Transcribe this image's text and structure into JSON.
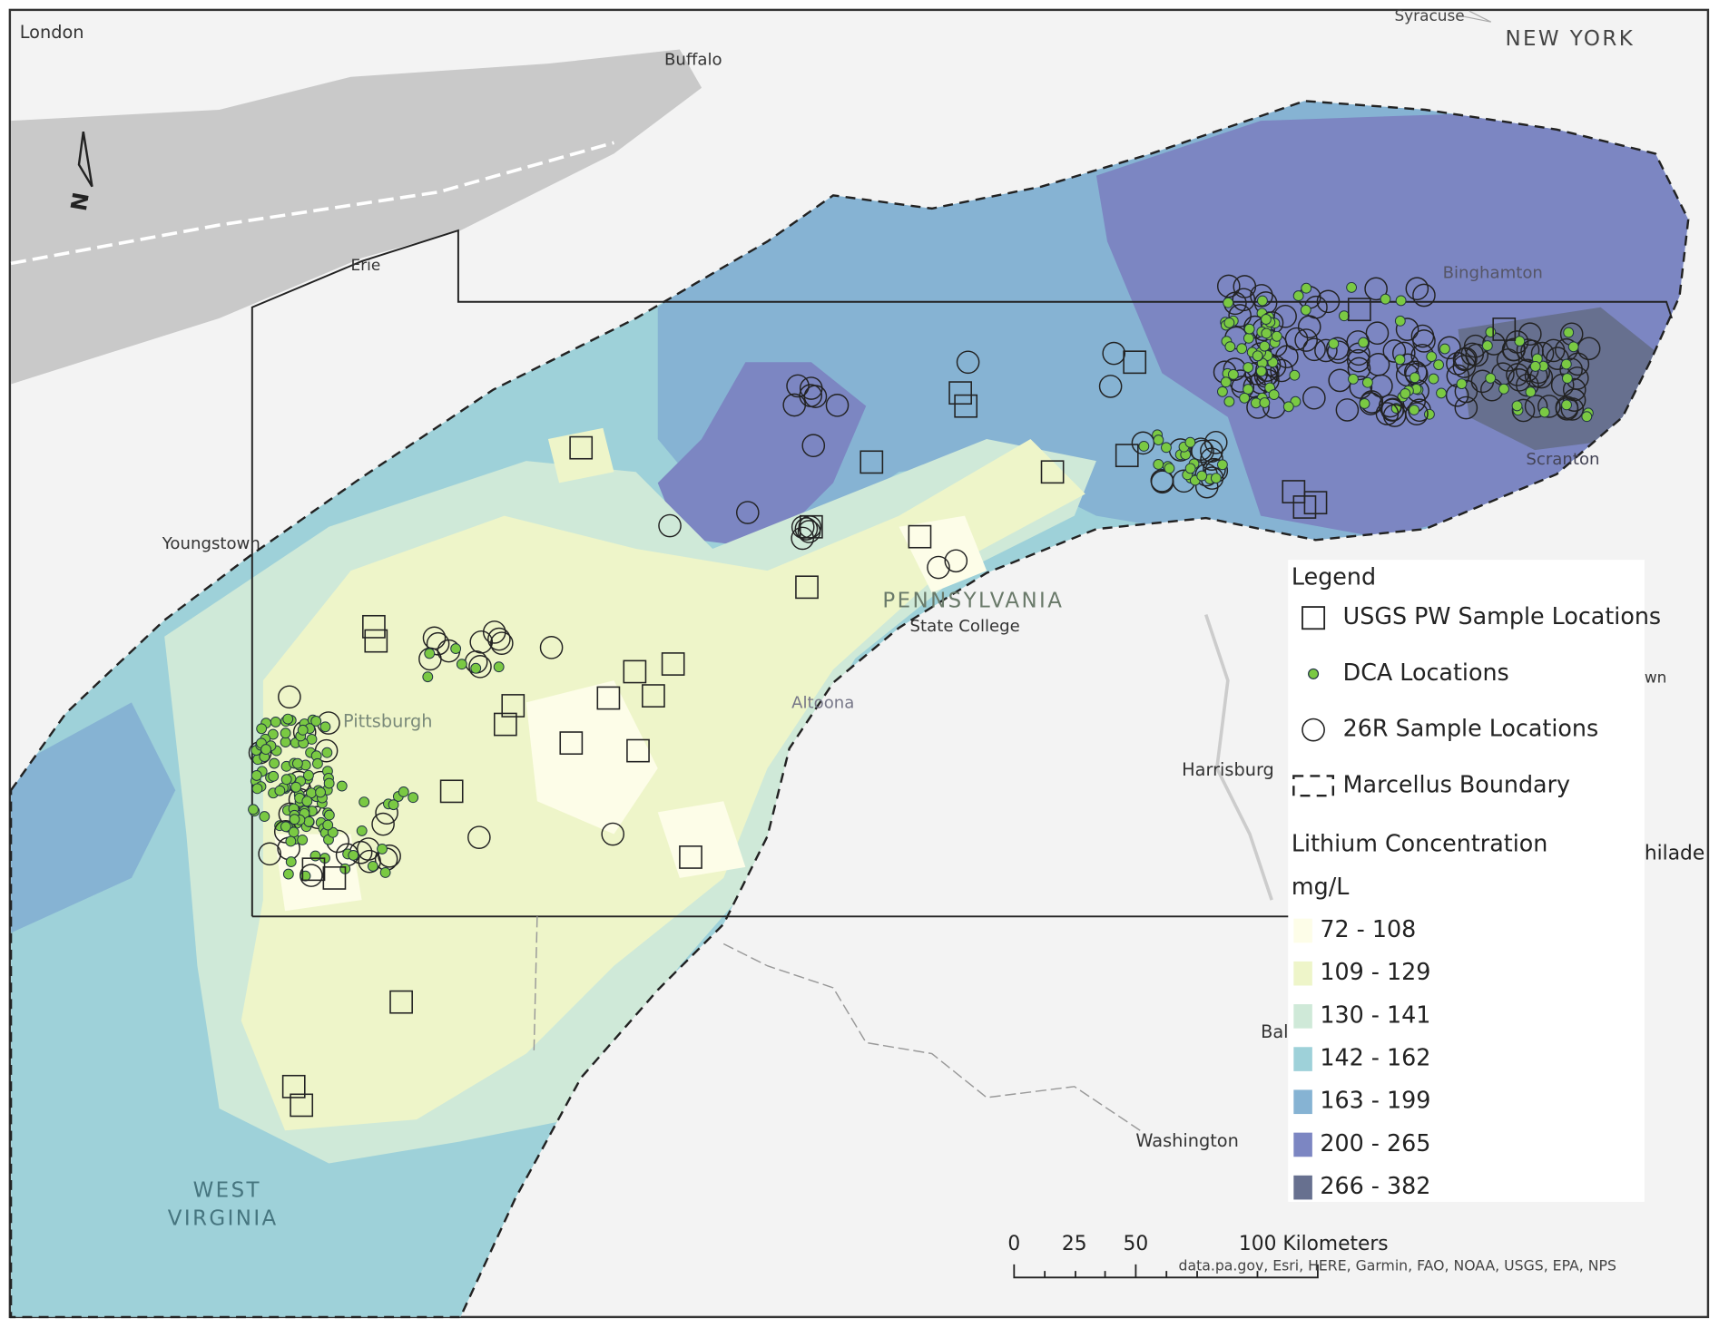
{
  "place_labels": [
    "London",
    "Buffalo",
    "Syracuse",
    "NEW YORK",
    "Erie",
    "Binghamton",
    "Scranton",
    "Youngstown",
    "PENNSYLVANIA",
    "State College",
    "Pittsburgh",
    "Altoona",
    "Harrisburg",
    "Washington",
    "WEST",
    "VIRGINIA",
    "Bal",
    "wn",
    "hilade"
  ],
  "north_arrow": "N",
  "legend": {
    "title": "Legend",
    "items": [
      "USGS PW Sample Locations",
      "DCA Locations",
      "26R Sample Locations",
      "Marcellus Boundary"
    ],
    "concentration_title": "Lithium Concentration",
    "concentration_unit": "mg/L",
    "classes": [
      {
        "label": "72 - 108",
        "color": "#fdfde8"
      },
      {
        "label": "109 - 129",
        "color": "#eef5c9"
      },
      {
        "label": "130 - 141",
        "color": "#cfe9d8"
      },
      {
        "label": "142 - 162",
        "color": "#9ed1d9"
      },
      {
        "label": "163 - 199",
        "color": "#86b3d3"
      },
      {
        "label": "200 - 265",
        "color": "#7c86c2"
      },
      {
        "label": "266 - 382",
        "color": "#67708f"
      }
    ]
  },
  "scale_bar": {
    "labels": [
      "0",
      "25",
      "50",
      "100 Kilometers"
    ]
  },
  "attribution": "data.pa.gov, Esri, HERE, Garmin, FAO, NOAA, USGS, EPA, NPS"
}
